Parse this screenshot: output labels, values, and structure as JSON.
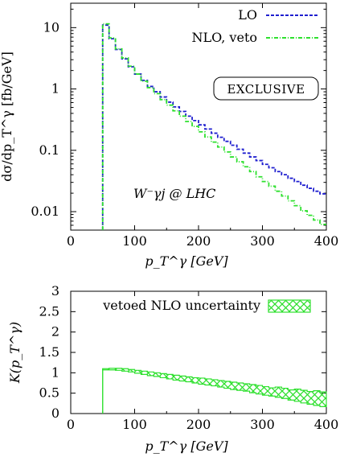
{
  "chart_data": [
    {
      "type": "line",
      "panel": "top",
      "xlabel": "p_T^γ [GeV]",
      "ylabel": "dσ/dp_T^γ [fb/GeV]",
      "xlim": [
        0,
        400
      ],
      "ylim": [
        0.005,
        25
      ],
      "yscale": "log",
      "xticks": [
        "0",
        "100",
        "200",
        "300",
        "400"
      ],
      "yticks": [
        "0.01",
        "0.1",
        "1",
        "10"
      ],
      "annotations": [
        "EXCLUSIVE",
        "W⁻γj @ LHC"
      ],
      "legend_position": "top-right",
      "grid": false,
      "x": [
        50,
        60,
        70,
        80,
        90,
        100,
        110,
        120,
        130,
        140,
        150,
        160,
        170,
        180,
        190,
        200,
        210,
        220,
        230,
        240,
        250,
        260,
        270,
        280,
        290,
        300,
        310,
        320,
        330,
        340,
        350,
        360,
        370,
        380,
        390
      ],
      "series": [
        {
          "name": "LO",
          "color": "#1f1fcf",
          "style": "dashed",
          "values": [
            11.0,
            6.6,
            4.4,
            3.1,
            2.3,
            1.75,
            1.38,
            1.1,
            0.9,
            0.74,
            0.61,
            0.51,
            0.43,
            0.36,
            0.305,
            0.26,
            0.222,
            0.19,
            0.163,
            0.14,
            0.121,
            0.104,
            0.09,
            0.078,
            0.068,
            0.059,
            0.052,
            0.045,
            0.04,
            0.035,
            0.031,
            0.027,
            0.024,
            0.0215,
            0.0195
          ]
        },
        {
          "name": "NLO, veto",
          "color": "#2ee02e",
          "style": "dash-dot",
          "values": [
            11.5,
            6.8,
            4.5,
            3.2,
            2.35,
            1.75,
            1.34,
            1.05,
            0.84,
            0.67,
            0.545,
            0.44,
            0.36,
            0.295,
            0.245,
            0.2,
            0.165,
            0.136,
            0.113,
            0.094,
            0.078,
            0.065,
            0.054,
            0.045,
            0.037,
            0.031,
            0.026,
            0.0215,
            0.018,
            0.015,
            0.0125,
            0.0103,
            0.0087,
            0.0073,
            0.0062
          ]
        }
      ]
    },
    {
      "type": "area",
      "panel": "bottom",
      "xlabel": "p_T^γ [GeV]",
      "ylabel": "K(p_T^γ)",
      "xlim": [
        0,
        400
      ],
      "ylim": [
        0,
        3
      ],
      "xticks": [
        "0",
        "100",
        "200",
        "300",
        "400"
      ],
      "yticks": [
        "0",
        "0.5",
        "1",
        "1.5",
        "2",
        "2.5",
        "3"
      ],
      "legend_position": "top",
      "grid": false,
      "x": [
        50,
        60,
        70,
        80,
        90,
        100,
        110,
        120,
        130,
        140,
        150,
        160,
        170,
        180,
        190,
        200,
        210,
        220,
        230,
        240,
        250,
        260,
        270,
        280,
        290,
        300,
        310,
        320,
        330,
        340,
        350,
        360,
        370,
        380,
        390
      ],
      "series": [
        {
          "name": "vetoed NLO uncertainty",
          "color": "#2ee02e",
          "pattern": "crosshatch",
          "low": [
            1.07,
            1.07,
            1.06,
            1.04,
            1.02,
            0.99,
            0.96,
            0.93,
            0.91,
            0.88,
            0.85,
            0.82,
            0.8,
            0.78,
            0.75,
            0.72,
            0.7,
            0.68,
            0.65,
            0.62,
            0.59,
            0.57,
            0.55,
            0.51,
            0.48,
            0.45,
            0.43,
            0.4,
            0.37,
            0.33,
            0.3,
            0.26,
            0.23,
            0.2,
            0.17
          ],
          "high": [
            1.1,
            1.11,
            1.11,
            1.1,
            1.08,
            1.06,
            1.04,
            1.02,
            1.0,
            0.98,
            0.96,
            0.94,
            0.92,
            0.9,
            0.88,
            0.87,
            0.85,
            0.83,
            0.81,
            0.79,
            0.77,
            0.75,
            0.73,
            0.71,
            0.69,
            0.66,
            0.63,
            0.65,
            0.62,
            0.58,
            0.6,
            0.57,
            0.54,
            0.56,
            0.53
          ]
        }
      ]
    }
  ]
}
